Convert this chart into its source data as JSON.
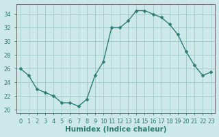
{
  "x": [
    0,
    1,
    2,
    3,
    4,
    5,
    6,
    7,
    8,
    9,
    10,
    11,
    12,
    13,
    14,
    15,
    16,
    17,
    18,
    19,
    20,
    21,
    22,
    23
  ],
  "y": [
    26,
    25,
    23,
    22.5,
    22,
    21,
    21,
    20.5,
    21.5,
    25,
    27,
    32,
    32,
    33,
    34.5,
    34.5,
    34,
    33.5,
    32.5,
    31,
    28.5,
    26.5,
    25,
    25.5
  ],
  "line_color": "#2e7d72",
  "marker": "D",
  "marker_size": 2.5,
  "bg_color": "#cde8e8",
  "grid_color": "#a0c8c8",
  "xlabel": "Humidex (Indice chaleur)",
  "xlim": [
    -0.5,
    23.5
  ],
  "ylim": [
    19.5,
    35.5
  ],
  "yticks": [
    20,
    22,
    24,
    26,
    28,
    30,
    32,
    34
  ],
  "xticks": [
    0,
    1,
    2,
    3,
    4,
    5,
    6,
    7,
    8,
    9,
    10,
    11,
    12,
    13,
    14,
    15,
    16,
    17,
    18,
    19,
    20,
    21,
    22,
    23
  ],
  "tick_label_fontsize": 6.0,
  "xlabel_fontsize": 7.5
}
